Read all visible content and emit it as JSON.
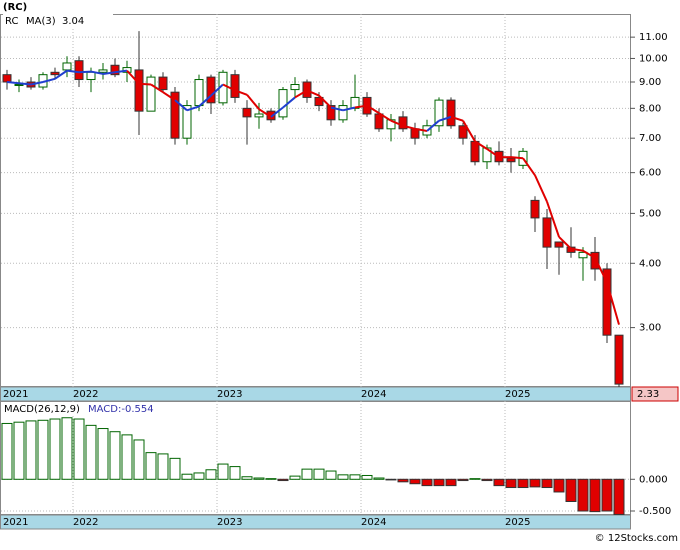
{
  "chart_data": [
    {
      "type": "candlestick",
      "title": "(RC)",
      "ticker": "RC",
      "log": true,
      "grid": true,
      "up_color": "#006400",
      "down_color": "#e00000",
      "categories": [
        "2021",
        null,
        null,
        null,
        null,
        null,
        "2022",
        null,
        null,
        null,
        null,
        null,
        null,
        null,
        null,
        null,
        null,
        null,
        "2023",
        null,
        null,
        null,
        null,
        null,
        null,
        null,
        null,
        null,
        null,
        null,
        "2024",
        null,
        null,
        null,
        null,
        null,
        null,
        null,
        null,
        null,
        null,
        null,
        "2025",
        null,
        null,
        null,
        null,
        null,
        null,
        null,
        null,
        null
      ],
      "open": [
        9.3,
        8.9,
        9.0,
        8.8,
        9.4,
        9.5,
        9.9,
        9.1,
        9.4,
        9.7,
        9.4,
        9.5,
        7.9,
        9.2,
        8.6,
        7.0,
        8.1,
        9.2,
        8.2,
        9.3,
        8.0,
        7.7,
        7.9,
        7.7,
        8.7,
        9.0,
        8.4,
        8.1,
        7.6,
        8.0,
        8.4,
        7.8,
        7.3,
        7.7,
        7.3,
        7.1,
        7.4,
        8.3,
        7.4,
        6.9,
        6.3,
        6.6,
        6.4,
        6.2,
        5.3,
        4.9,
        4.4,
        4.3,
        4.1,
        4.2,
        3.9,
        2.9
      ],
      "high": [
        9.5,
        9.1,
        9.2,
        9.4,
        9.6,
        10.1,
        10.1,
        9.6,
        9.8,
        10.0,
        9.9,
        11.3,
        9.3,
        9.4,
        8.8,
        8.3,
        9.3,
        9.3,
        9.5,
        9.5,
        8.3,
        8.2,
        8.0,
        8.8,
        9.2,
        9.1,
        8.6,
        8.3,
        8.3,
        9.3,
        8.6,
        8.0,
        7.8,
        7.9,
        7.5,
        7.6,
        8.4,
        8.4,
        7.5,
        7.1,
        6.8,
        6.9,
        6.7,
        6.7,
        5.4,
        5.1,
        4.4,
        4.7,
        4.3,
        4.5,
        4.0,
        2.9
      ],
      "low": [
        8.7,
        8.6,
        8.7,
        8.7,
        9.1,
        9.2,
        8.8,
        8.6,
        9.1,
        9.2,
        9.0,
        7.1,
        7.9,
        8.6,
        6.8,
        6.8,
        7.9,
        7.8,
        8.1,
        8.2,
        6.8,
        7.3,
        7.5,
        7.6,
        8.4,
        8.2,
        7.9,
        7.4,
        7.5,
        7.9,
        7.7,
        7.2,
        6.9,
        7.2,
        6.8,
        7.0,
        7.2,
        7.3,
        6.8,
        6.2,
        6.1,
        6.2,
        6.0,
        6.1,
        4.6,
        3.9,
        3.8,
        4.1,
        3.7,
        3.7,
        2.8,
        2.3
      ],
      "close": [
        9.0,
        8.9,
        8.8,
        9.3,
        9.3,
        9.8,
        9.1,
        9.4,
        9.5,
        9.3,
        9.6,
        7.9,
        9.2,
        8.7,
        7.0,
        8.1,
        9.1,
        8.2,
        9.4,
        8.4,
        7.7,
        7.8,
        7.6,
        8.7,
        8.9,
        8.4,
        8.1,
        7.6,
        8.1,
        8.4,
        7.8,
        7.3,
        7.6,
        7.3,
        7.0,
        7.4,
        8.3,
        7.4,
        7.0,
        6.3,
        6.7,
        6.3,
        6.3,
        6.6,
        4.9,
        4.3,
        4.3,
        4.2,
        4.2,
        3.9,
        2.9,
        2.33
      ],
      "ma": {
        "name": "MA(3)",
        "values": [
          9.0,
          8.95,
          8.9,
          9.0,
          9.13,
          9.47,
          9.4,
          9.43,
          9.33,
          9.4,
          9.47,
          8.93,
          8.9,
          8.6,
          8.3,
          7.93,
          8.07,
          8.47,
          8.9,
          8.67,
          8.5,
          7.97,
          7.7,
          8.03,
          8.4,
          8.67,
          8.47,
          8.03,
          7.93,
          8.03,
          8.1,
          7.83,
          7.57,
          7.4,
          7.3,
          7.23,
          7.57,
          7.7,
          7.57,
          6.9,
          6.67,
          6.43,
          6.43,
          6.4,
          5.93,
          5.27,
          4.5,
          4.27,
          4.23,
          4.1,
          3.67,
          3.04
        ],
        "colors": [
          "#1f3fcf",
          "#1f3fcf",
          "#1f3fcf",
          "#1f3fcf",
          "#1f3fcf",
          "#1f3fcf",
          "#1f3fcf",
          "#1f3fcf",
          "#1f3fcf",
          "#1f3fcf",
          "#1f3fcf",
          "#e00000",
          "#e00000",
          "#e00000",
          "#e00000",
          "#1f3fcf",
          "#1f3fcf",
          "#1f3fcf",
          "#1f3fcf",
          "#e00000",
          "#e00000",
          "#e00000",
          "#e00000",
          "#1f3fcf",
          "#1f3fcf",
          "#e00000",
          "#e00000",
          "#e00000",
          "#1f3fcf",
          "#1f3fcf",
          "#e00000",
          "#e00000",
          "#e00000",
          "#e00000",
          "#e00000",
          "#e00000",
          "#1f3fcf",
          "#1f3fcf",
          "#e00000",
          "#e00000",
          "#e00000",
          "#e00000",
          "#e00000",
          "#e00000",
          "#e00000",
          "#e00000",
          "#e00000",
          "#e00000",
          "#e00000",
          "#e00000",
          "#e00000",
          "#e00000"
        ]
      },
      "ylim": [
        2.3,
        12.2
      ],
      "yticks": [
        {
          "value": 3,
          "label": "3.00"
        },
        {
          "value": 4,
          "label": "4.00"
        },
        {
          "value": 5,
          "label": "5.00"
        },
        {
          "value": 6,
          "label": "6.00"
        },
        {
          "value": 7,
          "label": "7.00"
        },
        {
          "value": 8,
          "label": "8.00"
        },
        {
          "value": 9,
          "label": "9.00"
        },
        {
          "value": 10,
          "label": "10.00"
        },
        {
          "value": 11,
          "label": "11.00"
        }
      ]
    },
    {
      "type": "bar",
      "name": "MACD(26,12,9)",
      "current_label": "MACD:-0.554",
      "grid": true,
      "up_color": "#006400",
      "down_color": "#e00000",
      "values": [
        0.88,
        0.9,
        0.92,
        0.93,
        0.95,
        0.97,
        0.95,
        0.85,
        0.8,
        0.75,
        0.7,
        0.62,
        0.42,
        0.4,
        0.33,
        0.08,
        0.1,
        0.15,
        0.24,
        0.2,
        0.04,
        0.02,
        0.01,
        -0.02,
        0.05,
        0.16,
        0.16,
        0.13,
        0.07,
        0.07,
        0.06,
        0.02,
        -0.01,
        -0.04,
        -0.07,
        -0.1,
        -0.1,
        -0.1,
        -0.02,
        0.01,
        -0.02,
        -0.1,
        -0.13,
        -0.13,
        -0.12,
        -0.13,
        -0.2,
        -0.35,
        -0.5,
        -0.51,
        -0.5,
        -0.554
      ],
      "ylim": [
        -0.563,
        1.234
      ],
      "yticks": [
        {
          "value": -0.5,
          "label": "-0.500"
        },
        {
          "value": 0,
          "label": "0.000"
        }
      ]
    }
  ],
  "footer": "© 12Stocks.com"
}
